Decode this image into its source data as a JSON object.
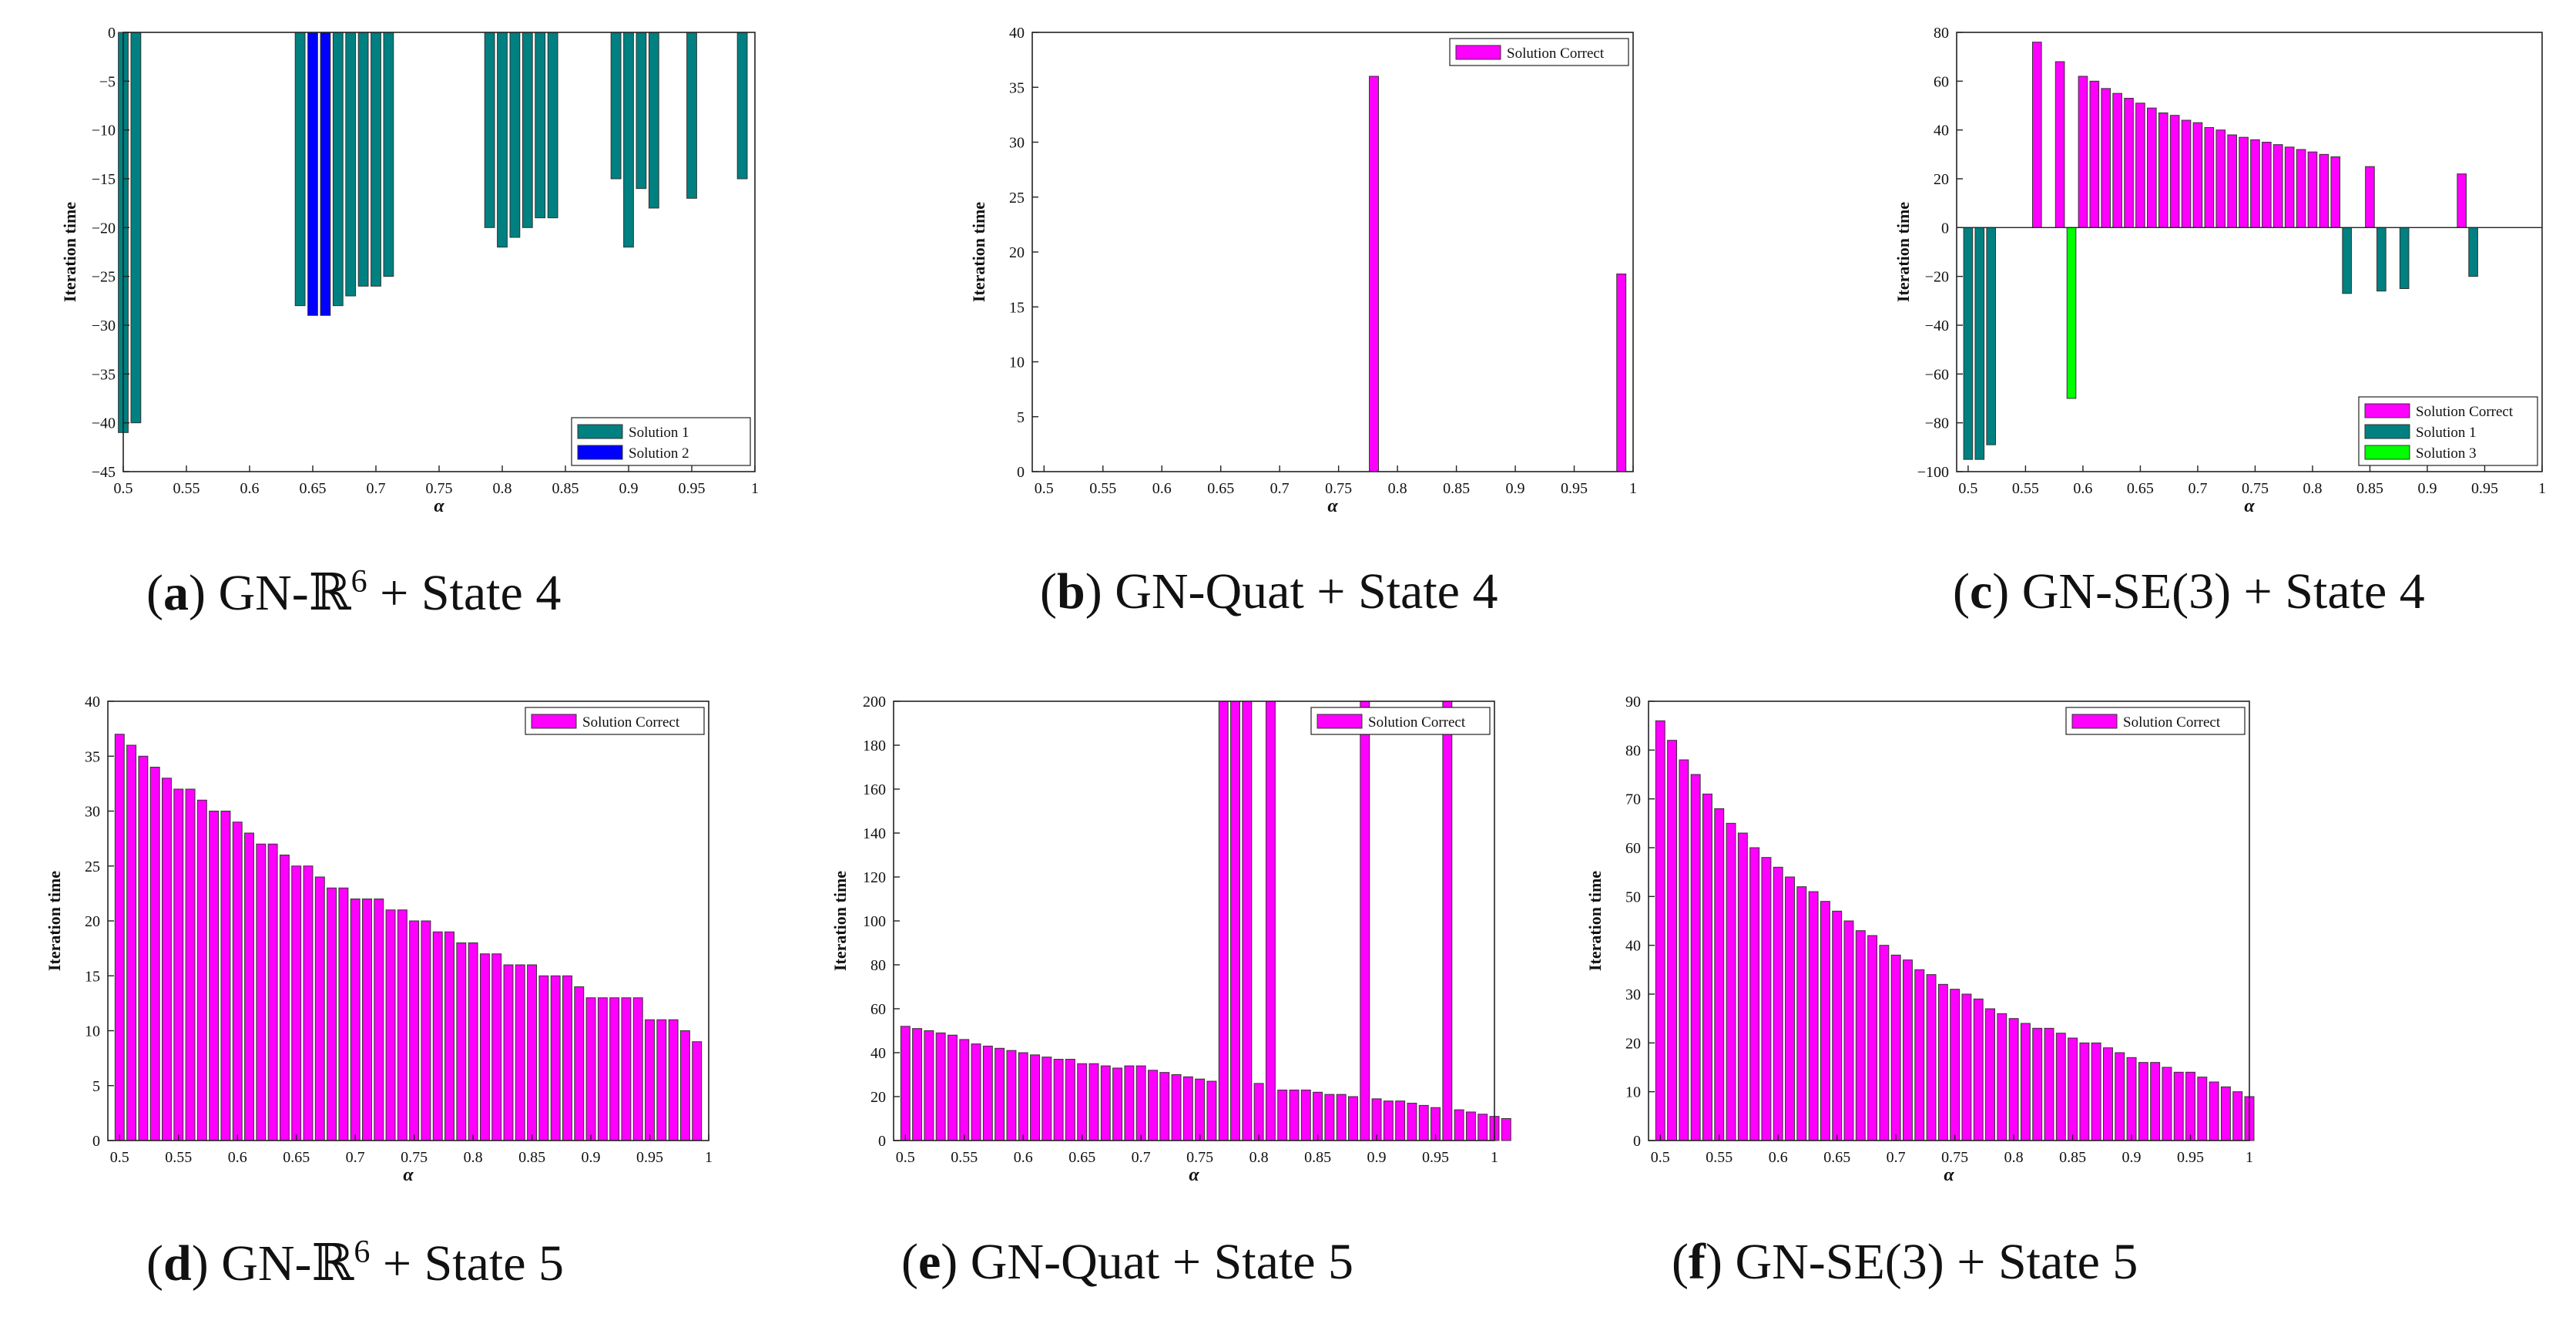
{
  "chart_data": [
    {
      "id": "a",
      "type": "bar",
      "caption": {
        "label": "a",
        "text": "GN-ℝ",
        "sup": "6",
        "suffix": " + State 4"
      },
      "xlabel": "α",
      "ylabel": "Iteration time",
      "xlim": [
        0.5,
        1.0
      ],
      "ylim": [
        -45,
        0
      ],
      "xticks": [
        "0.5",
        "0.55",
        "0.6",
        "0.65",
        "0.7",
        "0.75",
        "0.8",
        "0.85",
        "0.9",
        "0.95",
        "1"
      ],
      "xtick_values": [
        0.5,
        0.55,
        0.6,
        0.65,
        0.7,
        0.75,
        0.8,
        0.85,
        0.9,
        0.95,
        1.0
      ],
      "yticks": [
        "0",
        "−5",
        "−10",
        "−15",
        "−20",
        "−25",
        "−30",
        "−35",
        "−40",
        "−45"
      ],
      "ytick_values": [
        0,
        -5,
        -10,
        -15,
        -20,
        -25,
        -30,
        -35,
        -40,
        -45
      ],
      "legend": {
        "position": "bottom-right",
        "entries": [
          {
            "name": "Solution 1",
            "color": "#008080"
          },
          {
            "name": "Solution 2",
            "color": "#0000ff"
          }
        ]
      },
      "bars": [
        {
          "x": 0.5,
          "value": -41,
          "series": 0
        },
        {
          "x": 0.51,
          "value": -40,
          "series": 0
        },
        {
          "x": 0.64,
          "value": -28,
          "series": 0
        },
        {
          "x": 0.65,
          "value": -29,
          "series": 1
        },
        {
          "x": 0.66,
          "value": -29,
          "series": 1
        },
        {
          "x": 0.67,
          "value": -28,
          "series": 0
        },
        {
          "x": 0.68,
          "value": -27,
          "series": 0
        },
        {
          "x": 0.69,
          "value": -26,
          "series": 0
        },
        {
          "x": 0.7,
          "value": -26,
          "series": 0
        },
        {
          "x": 0.71,
          "value": -25,
          "series": 0
        },
        {
          "x": 0.79,
          "value": -20,
          "series": 0
        },
        {
          "x": 0.8,
          "value": -22,
          "series": 0
        },
        {
          "x": 0.81,
          "value": -21,
          "series": 0
        },
        {
          "x": 0.82,
          "value": -20,
          "series": 0
        },
        {
          "x": 0.83,
          "value": -19,
          "series": 0
        },
        {
          "x": 0.84,
          "value": -19,
          "series": 0
        },
        {
          "x": 0.89,
          "value": -15,
          "series": 0
        },
        {
          "x": 0.9,
          "value": -22,
          "series": 0
        },
        {
          "x": 0.91,
          "value": -16,
          "series": 0
        },
        {
          "x": 0.92,
          "value": -18,
          "series": 0
        },
        {
          "x": 0.95,
          "value": -17,
          "series": 0
        },
        {
          "x": 0.99,
          "value": -15,
          "series": 0
        }
      ]
    },
    {
      "id": "b",
      "type": "bar",
      "caption": {
        "label": "b",
        "text": "GN-Quat + State 4",
        "sup": "",
        "suffix": ""
      },
      "xlabel": "α",
      "ylabel": "Iteration time",
      "xlim": [
        0.49,
        1.0
      ],
      "ylim": [
        0,
        40
      ],
      "xticks": [
        "0.5",
        "0.55",
        "0.6",
        "0.65",
        "0.7",
        "0.75",
        "0.8",
        "0.85",
        "0.9",
        "0.95",
        "1"
      ],
      "xtick_values": [
        0.5,
        0.55,
        0.6,
        0.65,
        0.7,
        0.75,
        0.8,
        0.85,
        0.9,
        0.95,
        1.0
      ],
      "yticks": [
        "0",
        "5",
        "10",
        "15",
        "20",
        "25",
        "30",
        "35",
        "40"
      ],
      "ytick_values": [
        0,
        5,
        10,
        15,
        20,
        25,
        30,
        35,
        40
      ],
      "legend": {
        "position": "top-right",
        "entries": [
          {
            "name": "Solution Correct",
            "color": "#ff00ff"
          }
        ]
      },
      "bars": [
        {
          "x": 0.78,
          "value": 36,
          "series": 0
        },
        {
          "x": 0.99,
          "value": 18,
          "series": 0
        }
      ]
    },
    {
      "id": "c",
      "type": "bar",
      "caption": {
        "label": "c",
        "text": "GN-SE(3) + State 4",
        "sup": "",
        "suffix": ""
      },
      "xlabel": "α",
      "ylabel": "Iteration time",
      "xlim": [
        0.49,
        1.0
      ],
      "ylim": [
        -100,
        80
      ],
      "xticks": [
        "0.5",
        "0.55",
        "0.6",
        "0.65",
        "0.7",
        "0.75",
        "0.8",
        "0.85",
        "0.9",
        "0.95",
        "1"
      ],
      "xtick_values": [
        0.5,
        0.55,
        0.6,
        0.65,
        0.7,
        0.75,
        0.8,
        0.85,
        0.9,
        0.95,
        1.0
      ],
      "yticks": [
        "80",
        "60",
        "40",
        "20",
        "0",
        "−20",
        "−40",
        "−60",
        "−80",
        "−100"
      ],
      "ytick_values": [
        80,
        60,
        40,
        20,
        0,
        -20,
        -40,
        -60,
        -80,
        -100
      ],
      "legend": {
        "position": "bottom-right",
        "entries": [
          {
            "name": "Solution Correct",
            "color": "#ff00ff"
          },
          {
            "name": "Solution 1",
            "color": "#008080"
          },
          {
            "name": "Solution 3",
            "color": "#00ff00"
          }
        ]
      },
      "bars": [
        {
          "x": 0.5,
          "value": -95,
          "series": 1
        },
        {
          "x": 0.51,
          "value": -95,
          "series": 1
        },
        {
          "x": 0.52,
          "value": -89,
          "series": 1
        },
        {
          "x": 0.56,
          "value": 76,
          "series": 0
        },
        {
          "x": 0.58,
          "value": 68,
          "series": 0
        },
        {
          "x": 0.59,
          "value": -70,
          "series": 2
        },
        {
          "x": 0.6,
          "value": 62,
          "series": 0
        },
        {
          "x": 0.61,
          "value": 60,
          "series": 0
        },
        {
          "x": 0.62,
          "value": 57,
          "series": 0
        },
        {
          "x": 0.63,
          "value": 55,
          "series": 0
        },
        {
          "x": 0.64,
          "value": 53,
          "series": 0
        },
        {
          "x": 0.65,
          "value": 51,
          "series": 0
        },
        {
          "x": 0.66,
          "value": 49,
          "series": 0
        },
        {
          "x": 0.67,
          "value": 47,
          "series": 0
        },
        {
          "x": 0.68,
          "value": 46,
          "series": 0
        },
        {
          "x": 0.69,
          "value": 44,
          "series": 0
        },
        {
          "x": 0.7,
          "value": 43,
          "series": 0
        },
        {
          "x": 0.71,
          "value": 41,
          "series": 0
        },
        {
          "x": 0.72,
          "value": 40,
          "series": 0
        },
        {
          "x": 0.73,
          "value": 38,
          "series": 0
        },
        {
          "x": 0.74,
          "value": 37,
          "series": 0
        },
        {
          "x": 0.75,
          "value": 36,
          "series": 0
        },
        {
          "x": 0.76,
          "value": 35,
          "series": 0
        },
        {
          "x": 0.77,
          "value": 34,
          "series": 0
        },
        {
          "x": 0.78,
          "value": 33,
          "series": 0
        },
        {
          "x": 0.79,
          "value": 32,
          "series": 0
        },
        {
          "x": 0.8,
          "value": 31,
          "series": 0
        },
        {
          "x": 0.81,
          "value": 30,
          "series": 0
        },
        {
          "x": 0.82,
          "value": 29,
          "series": 0
        },
        {
          "x": 0.83,
          "value": -27,
          "series": 1
        },
        {
          "x": 0.85,
          "value": 25,
          "series": 0
        },
        {
          "x": 0.86,
          "value": -26,
          "series": 1
        },
        {
          "x": 0.88,
          "value": -25,
          "series": 1
        },
        {
          "x": 0.93,
          "value": 22,
          "series": 0
        },
        {
          "x": 0.94,
          "value": -20,
          "series": 1
        }
      ]
    },
    {
      "id": "d",
      "type": "bar",
      "caption": {
        "label": "d",
        "text": "GN-ℝ",
        "sup": "6",
        "suffix": " + State 5"
      },
      "xlabel": "α",
      "ylabel": "Iteration time",
      "xlim": [
        0.49,
        1.0
      ],
      "ylim": [
        0,
        40
      ],
      "xticks": [
        "0.5",
        "0.55",
        "0.6",
        "0.65",
        "0.7",
        "0.75",
        "0.8",
        "0.85",
        "0.9",
        "0.95",
        "1"
      ],
      "xtick_values": [
        0.5,
        0.55,
        0.6,
        0.65,
        0.7,
        0.75,
        0.8,
        0.85,
        0.9,
        0.95,
        1.0
      ],
      "yticks": [
        "0",
        "5",
        "10",
        "15",
        "20",
        "25",
        "30",
        "35",
        "40"
      ],
      "ytick_values": [
        0,
        5,
        10,
        15,
        20,
        25,
        30,
        35,
        40
      ],
      "legend": {
        "position": "top-right",
        "entries": [
          {
            "name": "Solution Correct",
            "color": "#ff00ff"
          }
        ]
      },
      "series0_start": 0.5,
      "series0_step": 0.01,
      "values": [
        37,
        36,
        35,
        34,
        33,
        32,
        32,
        31,
        30,
        30,
        29,
        28,
        27,
        27,
        26,
        25,
        25,
        24,
        23,
        23,
        22,
        22,
        22,
        21,
        21,
        20,
        20,
        19,
        19,
        18,
        18,
        17,
        17,
        16,
        16,
        16,
        15,
        15,
        15,
        14,
        13,
        13,
        13,
        13,
        13,
        11,
        11,
        11,
        10,
        9
      ]
    },
    {
      "id": "e",
      "type": "bar",
      "caption": {
        "label": "e",
        "text": "GN-Quat + State 5",
        "sup": "",
        "suffix": ""
      },
      "xlabel": "α",
      "ylabel": "Iteration time",
      "xlim": [
        0.49,
        1.0
      ],
      "ylim": [
        0,
        200
      ],
      "xticks": [
        "0.5",
        "0.55",
        "0.6",
        "0.65",
        "0.7",
        "0.75",
        "0.8",
        "0.85",
        "0.9",
        "0.95",
        "1"
      ],
      "xtick_values": [
        0.5,
        0.55,
        0.6,
        0.65,
        0.7,
        0.75,
        0.8,
        0.85,
        0.9,
        0.95,
        1.0
      ],
      "yticks": [
        "0",
        "20",
        "40",
        "60",
        "80",
        "100",
        "120",
        "140",
        "160",
        "180",
        "200"
      ],
      "ytick_values": [
        0,
        20,
        40,
        60,
        80,
        100,
        120,
        140,
        160,
        180,
        200
      ],
      "legend": {
        "position": "top-right",
        "entries": [
          {
            "name": "Solution Correct",
            "color": "#ff00ff"
          }
        ]
      },
      "series0_start": 0.5,
      "series0_step": 0.01,
      "values": [
        52,
        51,
        50,
        49,
        48,
        46,
        44,
        43,
        42,
        41,
        40,
        39,
        38,
        37,
        37,
        35,
        35,
        34,
        33,
        34,
        34,
        32,
        31,
        30,
        29,
        28,
        27,
        200,
        200,
        200,
        26,
        200,
        23,
        23,
        23,
        22,
        21,
        21,
        20,
        200,
        19,
        18,
        18,
        17,
        16,
        15,
        200,
        14,
        13,
        12,
        11,
        10
      ]
    },
    {
      "id": "f",
      "type": "bar",
      "caption": {
        "label": "f",
        "text": "GN-SE(3) + State 5",
        "sup": "",
        "suffix": ""
      },
      "xlabel": "α",
      "ylabel": "Iteration time",
      "xlim": [
        0.49,
        1.0
      ],
      "ylim": [
        0,
        90
      ],
      "xticks": [
        "0.5",
        "0.55",
        "0.6",
        "0.65",
        "0.7",
        "0.75",
        "0.8",
        "0.85",
        "0.9",
        "0.95",
        "1"
      ],
      "xtick_values": [
        0.5,
        0.55,
        0.6,
        0.65,
        0.7,
        0.75,
        0.8,
        0.85,
        0.9,
        0.95,
        1.0
      ],
      "yticks": [
        "0",
        "10",
        "20",
        "30",
        "40",
        "50",
        "60",
        "70",
        "80",
        "90"
      ],
      "ytick_values": [
        0,
        10,
        20,
        30,
        40,
        50,
        60,
        70,
        80,
        90
      ],
      "legend": {
        "position": "top-right",
        "entries": [
          {
            "name": "Solution Correct",
            "color": "#ff00ff"
          }
        ]
      },
      "series0_start": 0.5,
      "series0_step": 0.01,
      "values": [
        86,
        82,
        78,
        75,
        71,
        68,
        65,
        63,
        60,
        58,
        56,
        54,
        52,
        51,
        49,
        47,
        45,
        43,
        42,
        40,
        38,
        37,
        35,
        34,
        32,
        31,
        30,
        29,
        27,
        26,
        25,
        24,
        23,
        23,
        22,
        21,
        20,
        20,
        19,
        18,
        17,
        16,
        16,
        15,
        14,
        14,
        13,
        12,
        11,
        10,
        9
      ]
    }
  ]
}
